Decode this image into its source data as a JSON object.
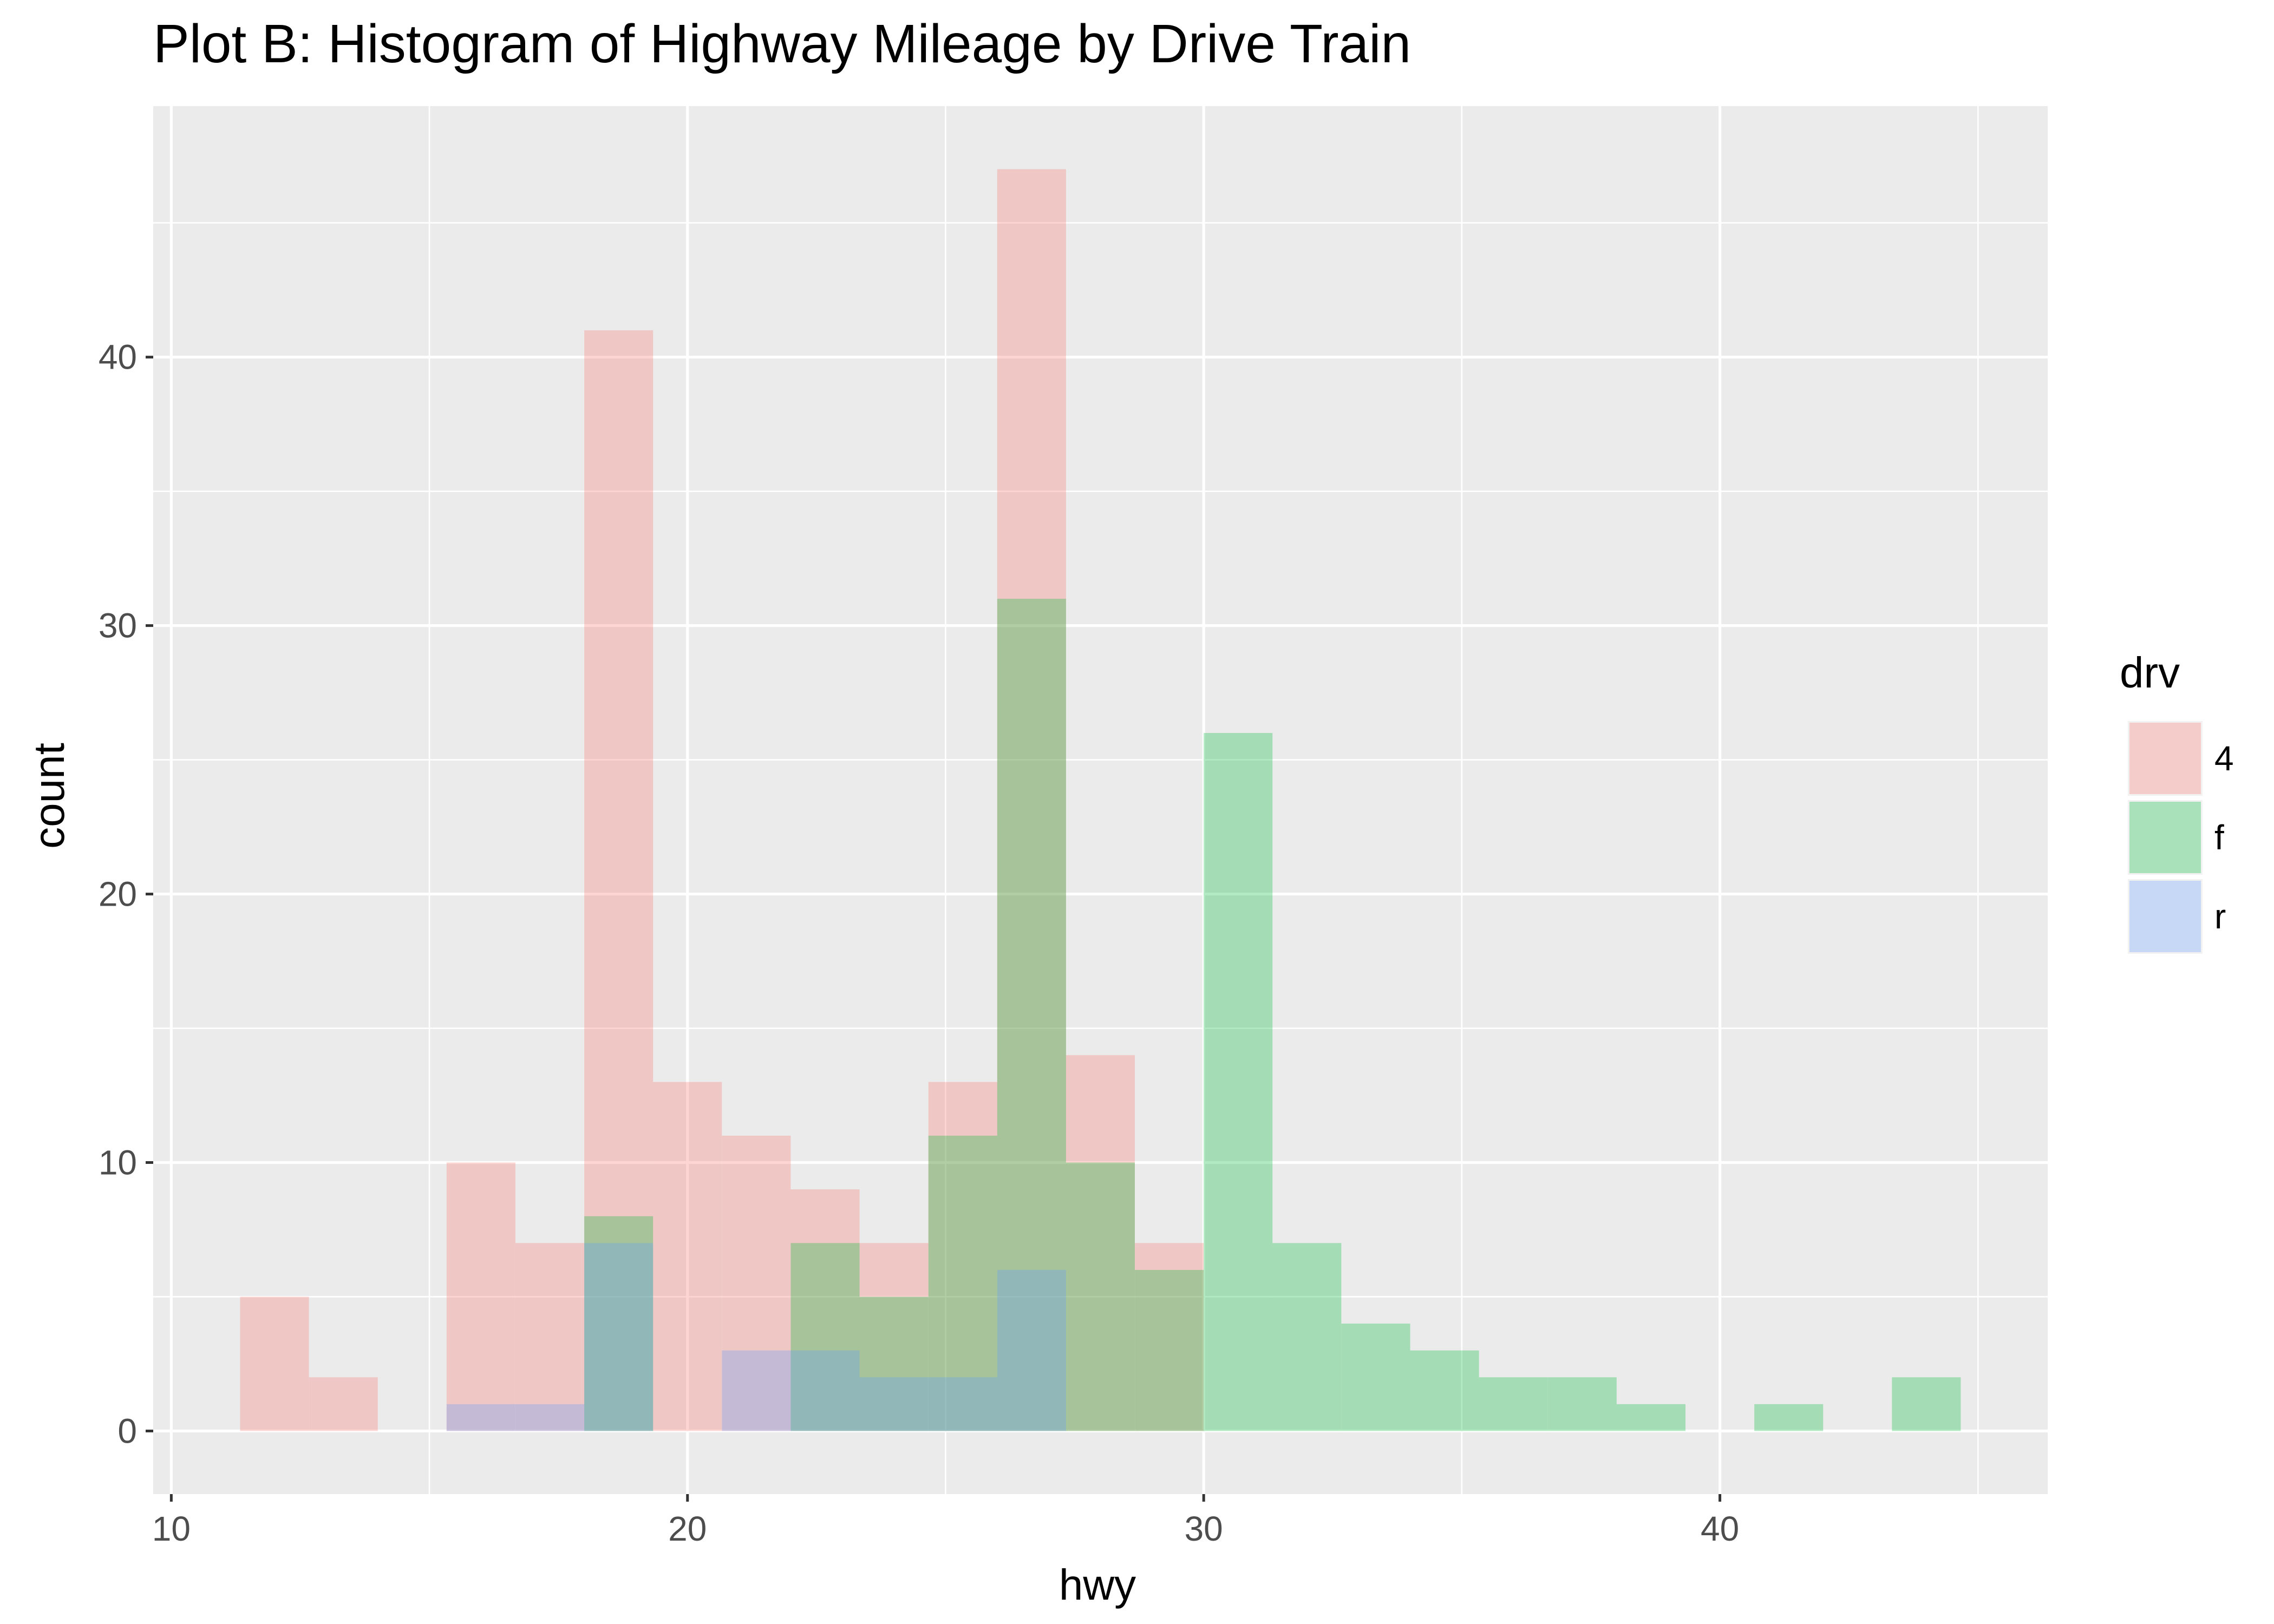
{
  "chart_data": {
    "type": "bar",
    "subtype": "histogram-overlapping",
    "title": "Plot B: Histogram of Highway Mileage by Drive Train",
    "xlabel": "hwy",
    "ylabel": "count",
    "xlim": [
      9.65,
      46.35
    ],
    "ylim": [
      -2.35,
      49.35
    ],
    "xticks": [
      10,
      20,
      30,
      40
    ],
    "yticks": [
      0,
      10,
      20,
      30,
      40
    ],
    "grid": true,
    "legend": {
      "title": "drv",
      "position": "right"
    },
    "bin_width": 1.333,
    "bins_left": [
      11.333,
      12.667,
      14.0,
      15.333,
      16.667,
      18.0,
      19.333,
      20.667,
      22.0,
      23.333,
      24.667,
      26.0,
      27.333,
      28.667,
      30.0,
      31.333,
      32.667,
      34.0,
      35.333,
      36.667,
      38.0,
      39.333,
      40.667,
      42.0,
      43.333
    ],
    "series": [
      {
        "name": "4",
        "color": "#F8766D",
        "values": [
          5,
          2,
          0,
          10,
          7,
          41,
          13,
          11,
          9,
          7,
          13,
          47,
          14,
          7,
          0,
          0,
          0,
          0,
          0,
          0,
          0,
          0,
          0,
          0,
          0
        ]
      },
      {
        "name": "f",
        "color": "#00BA38",
        "values": [
          0,
          0,
          0,
          0,
          0,
          8,
          0,
          0,
          7,
          5,
          11,
          31,
          10,
          6,
          26,
          7,
          4,
          3,
          2,
          2,
          1,
          0,
          1,
          0,
          2
        ]
      },
      {
        "name": "r",
        "color": "#619CFF",
        "values": [
          0,
          0,
          0,
          1,
          1,
          7,
          0,
          3,
          3,
          2,
          2,
          6,
          0,
          0,
          0,
          0,
          0,
          0,
          0,
          0,
          0,
          0,
          0,
          0,
          0
        ]
      }
    ]
  }
}
